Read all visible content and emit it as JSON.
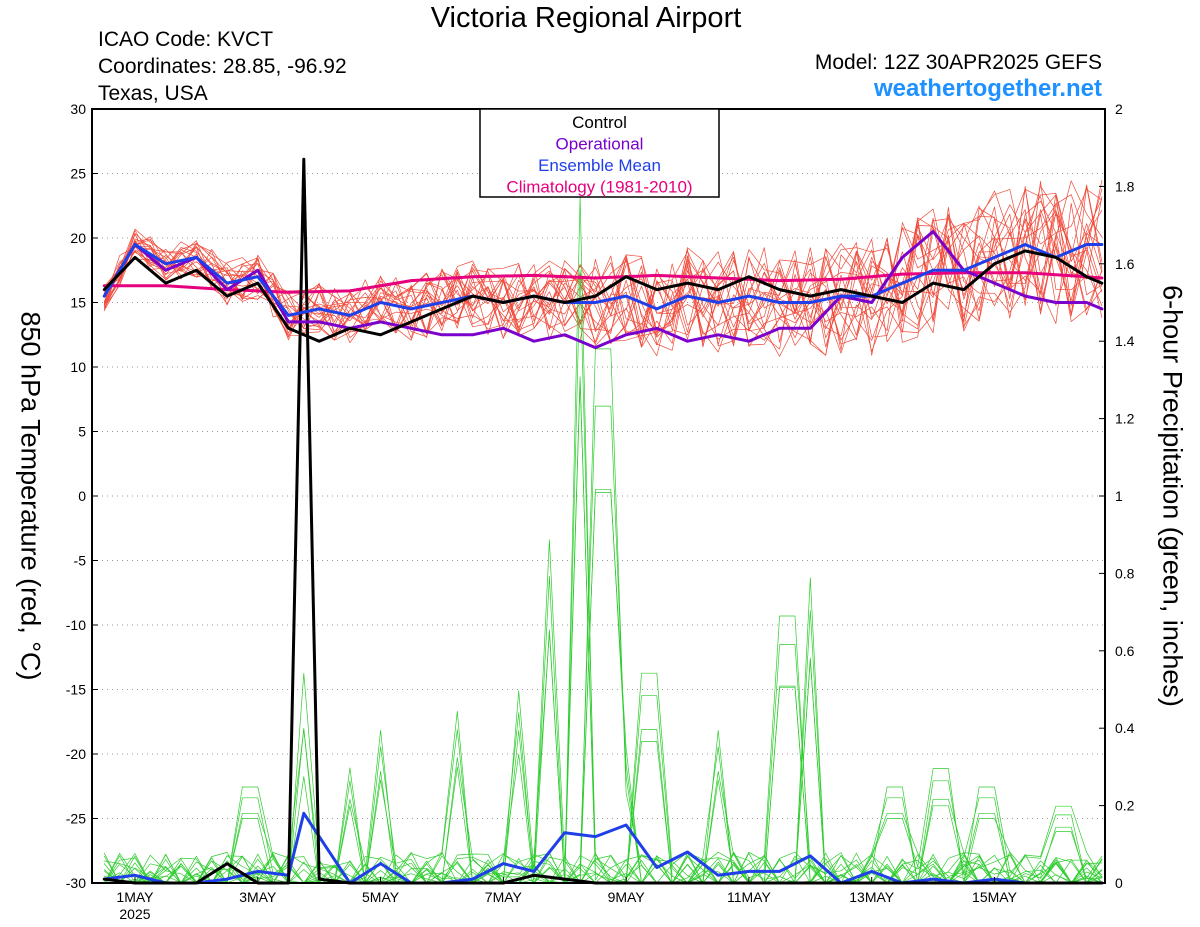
{
  "header": {
    "title": "Victoria Regional Airport",
    "icao": "ICAO Code: KVCT",
    "coordinates": "Coordinates: 28.85, -96.92",
    "location": "Texas, USA",
    "model": "Model: 12Z 30APR2025 GEFS",
    "site": "weathertogether.net"
  },
  "colors": {
    "control": "#000000",
    "operational": "#7a00cc",
    "ensemble_mean": "#1f3fe8",
    "climatology": "#e6007e",
    "members_temp": "#f04a3a",
    "members_precip": "#2ecc2e",
    "site_link": "#1e90ff"
  },
  "chart_data": {
    "type": "line",
    "x_unit": "days since 30APR2025 12Z",
    "xlim": [
      0.3,
      16.8
    ],
    "xticks": [
      {
        "x": 1,
        "label": "1MAY",
        "sublabel": "2025"
      },
      {
        "x": 3,
        "label": "3MAY"
      },
      {
        "x": 5,
        "label": "5MAY"
      },
      {
        "x": 7,
        "label": "7MAY"
      },
      {
        "x": 9,
        "label": "9MAY"
      },
      {
        "x": 11,
        "label": "11MAY"
      },
      {
        "x": 13,
        "label": "13MAY"
      },
      {
        "x": 15,
        "label": "15MAY"
      }
    ],
    "ylabel_left": "850 hPa Temperature (red, °C)",
    "ylabel_right": "6-hour Precipitation (green, inches)",
    "ylim_left": [
      -30,
      30
    ],
    "yticks_left": [
      -30,
      -25,
      -20,
      -15,
      -10,
      -5,
      0,
      5,
      10,
      15,
      20,
      25,
      30
    ],
    "ylim_right": [
      0,
      2
    ],
    "yticks_right": [
      {
        "value": 0,
        "label": "0"
      },
      {
        "value": 0.2,
        "label": "0.2"
      },
      {
        "value": 0.4,
        "label": "0.4"
      },
      {
        "value": 0.6,
        "label": "0.6"
      },
      {
        "value": 0.8,
        "label": "0.8"
      },
      {
        "value": 1.0,
        "label": "1"
      },
      {
        "value": 1.2,
        "label": "1.2"
      },
      {
        "value": 1.4,
        "label": "1.4"
      },
      {
        "value": 1.6,
        "label": "1.6"
      },
      {
        "value": 1.8,
        "label": "1.8"
      },
      {
        "value": 2.0,
        "label": "2"
      }
    ],
    "grid": "horizontal dotted",
    "legend": {
      "position": "top-center",
      "entries": [
        {
          "label": "Control",
          "color": "#000000"
        },
        {
          "label": "Operational",
          "color": "#7a00cc"
        },
        {
          "label": "Ensemble Mean",
          "color": "#1f3fe8"
        },
        {
          "label": "Climatology (1981-2010)",
          "color": "#e6007e"
        }
      ]
    },
    "temp_series": {
      "control": {
        "x": [
          0.5,
          1.0,
          1.5,
          2.0,
          2.5,
          3.0,
          3.5,
          4.0,
          4.5,
          5.0,
          5.5,
          6.0,
          6.5,
          7.0,
          7.5,
          8.0,
          8.5,
          9.0,
          9.5,
          10.0,
          10.5,
          11.0,
          11.5,
          12.0,
          12.5,
          13.0,
          13.5,
          14.0,
          14.5,
          15.0,
          15.5,
          16.0,
          16.5,
          16.75
        ],
        "y": [
          16.0,
          18.5,
          16.5,
          17.5,
          15.5,
          16.5,
          13.0,
          12.0,
          13.0,
          12.5,
          13.5,
          14.5,
          15.5,
          15.0,
          15.5,
          15.0,
          15.5,
          17.0,
          16.0,
          16.5,
          16.0,
          17.0,
          16.0,
          15.5,
          16.0,
          15.5,
          15.0,
          16.5,
          16.0,
          18.0,
          19.0,
          18.5,
          17.0,
          16.5
        ]
      },
      "operational": {
        "x": [
          0.5,
          1.0,
          1.5,
          2.0,
          2.5,
          3.0,
          3.5,
          4.0,
          4.5,
          5.0,
          5.5,
          6.0,
          6.5,
          7.0,
          7.5,
          8.0,
          8.5,
          9.0,
          9.5,
          10.0,
          10.5,
          11.0,
          11.5,
          12.0,
          12.5,
          13.0,
          13.5,
          14.0,
          14.5,
          15.0,
          15.5,
          16.0,
          16.5,
          16.75
        ],
        "y": [
          15.5,
          19.5,
          17.5,
          18.5,
          16.0,
          17.5,
          13.5,
          13.5,
          13.0,
          13.5,
          13.0,
          12.5,
          12.5,
          13.0,
          12.0,
          12.5,
          11.5,
          12.5,
          13.0,
          12.0,
          12.5,
          12.0,
          13.0,
          13.0,
          15.5,
          15.0,
          18.5,
          20.5,
          17.5,
          16.5,
          15.5,
          15.0,
          15.0,
          14.5
        ]
      },
      "ensemble_mean": {
        "x": [
          0.5,
          1.0,
          1.5,
          2.0,
          2.5,
          3.0,
          3.5,
          4.0,
          4.5,
          5.0,
          5.5,
          6.0,
          6.5,
          7.0,
          7.5,
          8.0,
          8.5,
          9.0,
          9.5,
          10.0,
          10.5,
          11.0,
          11.5,
          12.0,
          12.5,
          13.0,
          13.5,
          14.0,
          14.5,
          15.0,
          15.5,
          16.0,
          16.5,
          16.75
        ],
        "y": [
          15.5,
          19.5,
          18.0,
          18.5,
          16.5,
          17.0,
          14.0,
          14.5,
          14.0,
          15.0,
          14.5,
          15.0,
          15.5,
          15.0,
          15.5,
          15.0,
          15.0,
          15.5,
          14.5,
          15.5,
          15.0,
          15.5,
          15.0,
          15.0,
          15.5,
          15.5,
          16.5,
          17.5,
          17.5,
          18.5,
          19.5,
          18.5,
          19.5,
          19.5
        ]
      },
      "climatology": {
        "x": [
          0.5,
          1.5,
          2.5,
          3.5,
          4.5,
          5.5,
          6.5,
          7.5,
          8.5,
          9.5,
          10.5,
          11.5,
          12.5,
          13.5,
          14.5,
          15.5,
          16.5,
          16.75
        ],
        "y": [
          16.3,
          16.3,
          16.0,
          15.8,
          15.9,
          16.7,
          17.0,
          17.1,
          16.9,
          17.1,
          16.9,
          16.7,
          16.8,
          17.2,
          17.3,
          17.3,
          17.0,
          16.9
        ]
      }
    },
    "precip_series": {
      "control": {
        "x": [
          0.5,
          1.0,
          1.5,
          2.0,
          2.5,
          3.0,
          3.5,
          3.75,
          4.0,
          4.5,
          5.0,
          5.5,
          6.0,
          6.5,
          7.0,
          7.5,
          8.0,
          8.5,
          9.0,
          9.5,
          10.0,
          16.75
        ],
        "y": [
          0.01,
          0.0,
          0.0,
          0.0,
          0.05,
          0.0,
          0.0,
          1.87,
          0.01,
          0.0,
          0.0,
          0.0,
          0.0,
          0.0,
          0.0,
          0.02,
          0.01,
          0.0,
          0.0,
          0.0,
          0.0,
          0.0
        ]
      },
      "ensemble_mean": {
        "x": [
          0.5,
          1.0,
          1.5,
          2.0,
          2.5,
          3.0,
          3.5,
          3.75,
          4.0,
          4.5,
          5.0,
          5.5,
          6.0,
          6.5,
          7.0,
          7.5,
          8.0,
          8.5,
          9.0,
          9.5,
          10.0,
          10.5,
          11.0,
          11.5,
          12.0,
          12.5,
          13.0,
          13.5,
          14.0,
          14.5,
          15.0,
          15.5,
          16.0,
          16.5,
          16.75
        ],
        "y": [
          0.01,
          0.02,
          0.0,
          0.0,
          0.01,
          0.03,
          0.02,
          0.18,
          0.12,
          0.0,
          0.05,
          0.0,
          0.0,
          0.01,
          0.05,
          0.03,
          0.13,
          0.12,
          0.15,
          0.04,
          0.08,
          0.02,
          0.03,
          0.03,
          0.07,
          0.0,
          0.03,
          0.0,
          0.01,
          0.0,
          0.01,
          0.0,
          0.0,
          0.0,
          0.0
        ]
      }
    }
  }
}
